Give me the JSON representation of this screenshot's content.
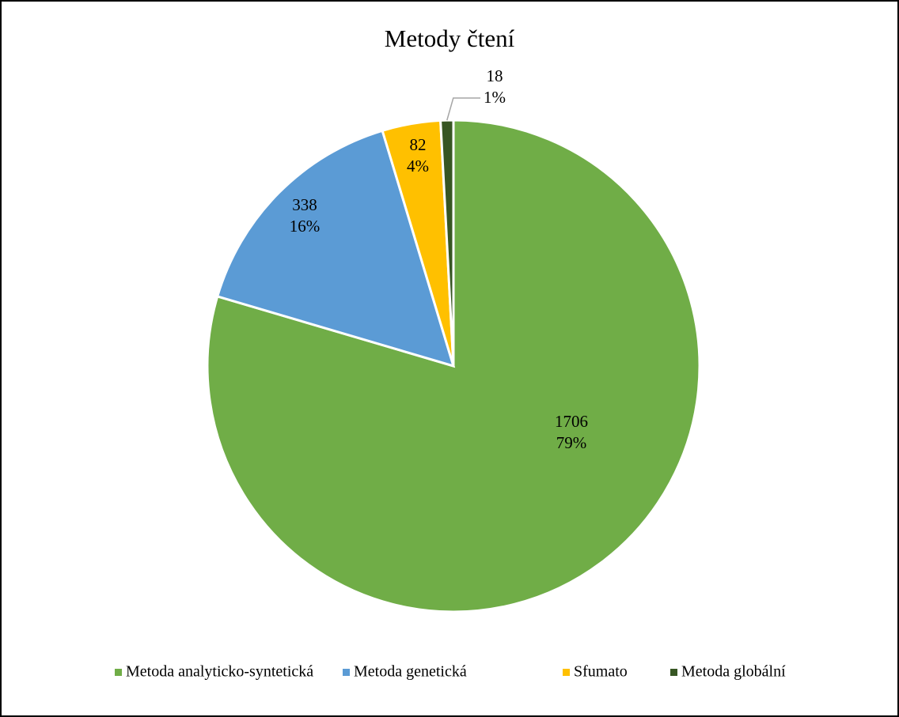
{
  "chart_data": {
    "type": "pie",
    "title": "Metody čtení",
    "categories": [
      "Metoda analyticko-syntetická",
      "Metoda genetická",
      "Sfumato",
      "Metoda globální"
    ],
    "values": [
      1706,
      338,
      82,
      18
    ],
    "percent_labels": [
      "79%",
      "16%",
      "4%",
      "1%"
    ],
    "colors": [
      "#70ad47",
      "#5b9bd5",
      "#ffc000",
      "#375623"
    ],
    "legend": "bottom"
  }
}
